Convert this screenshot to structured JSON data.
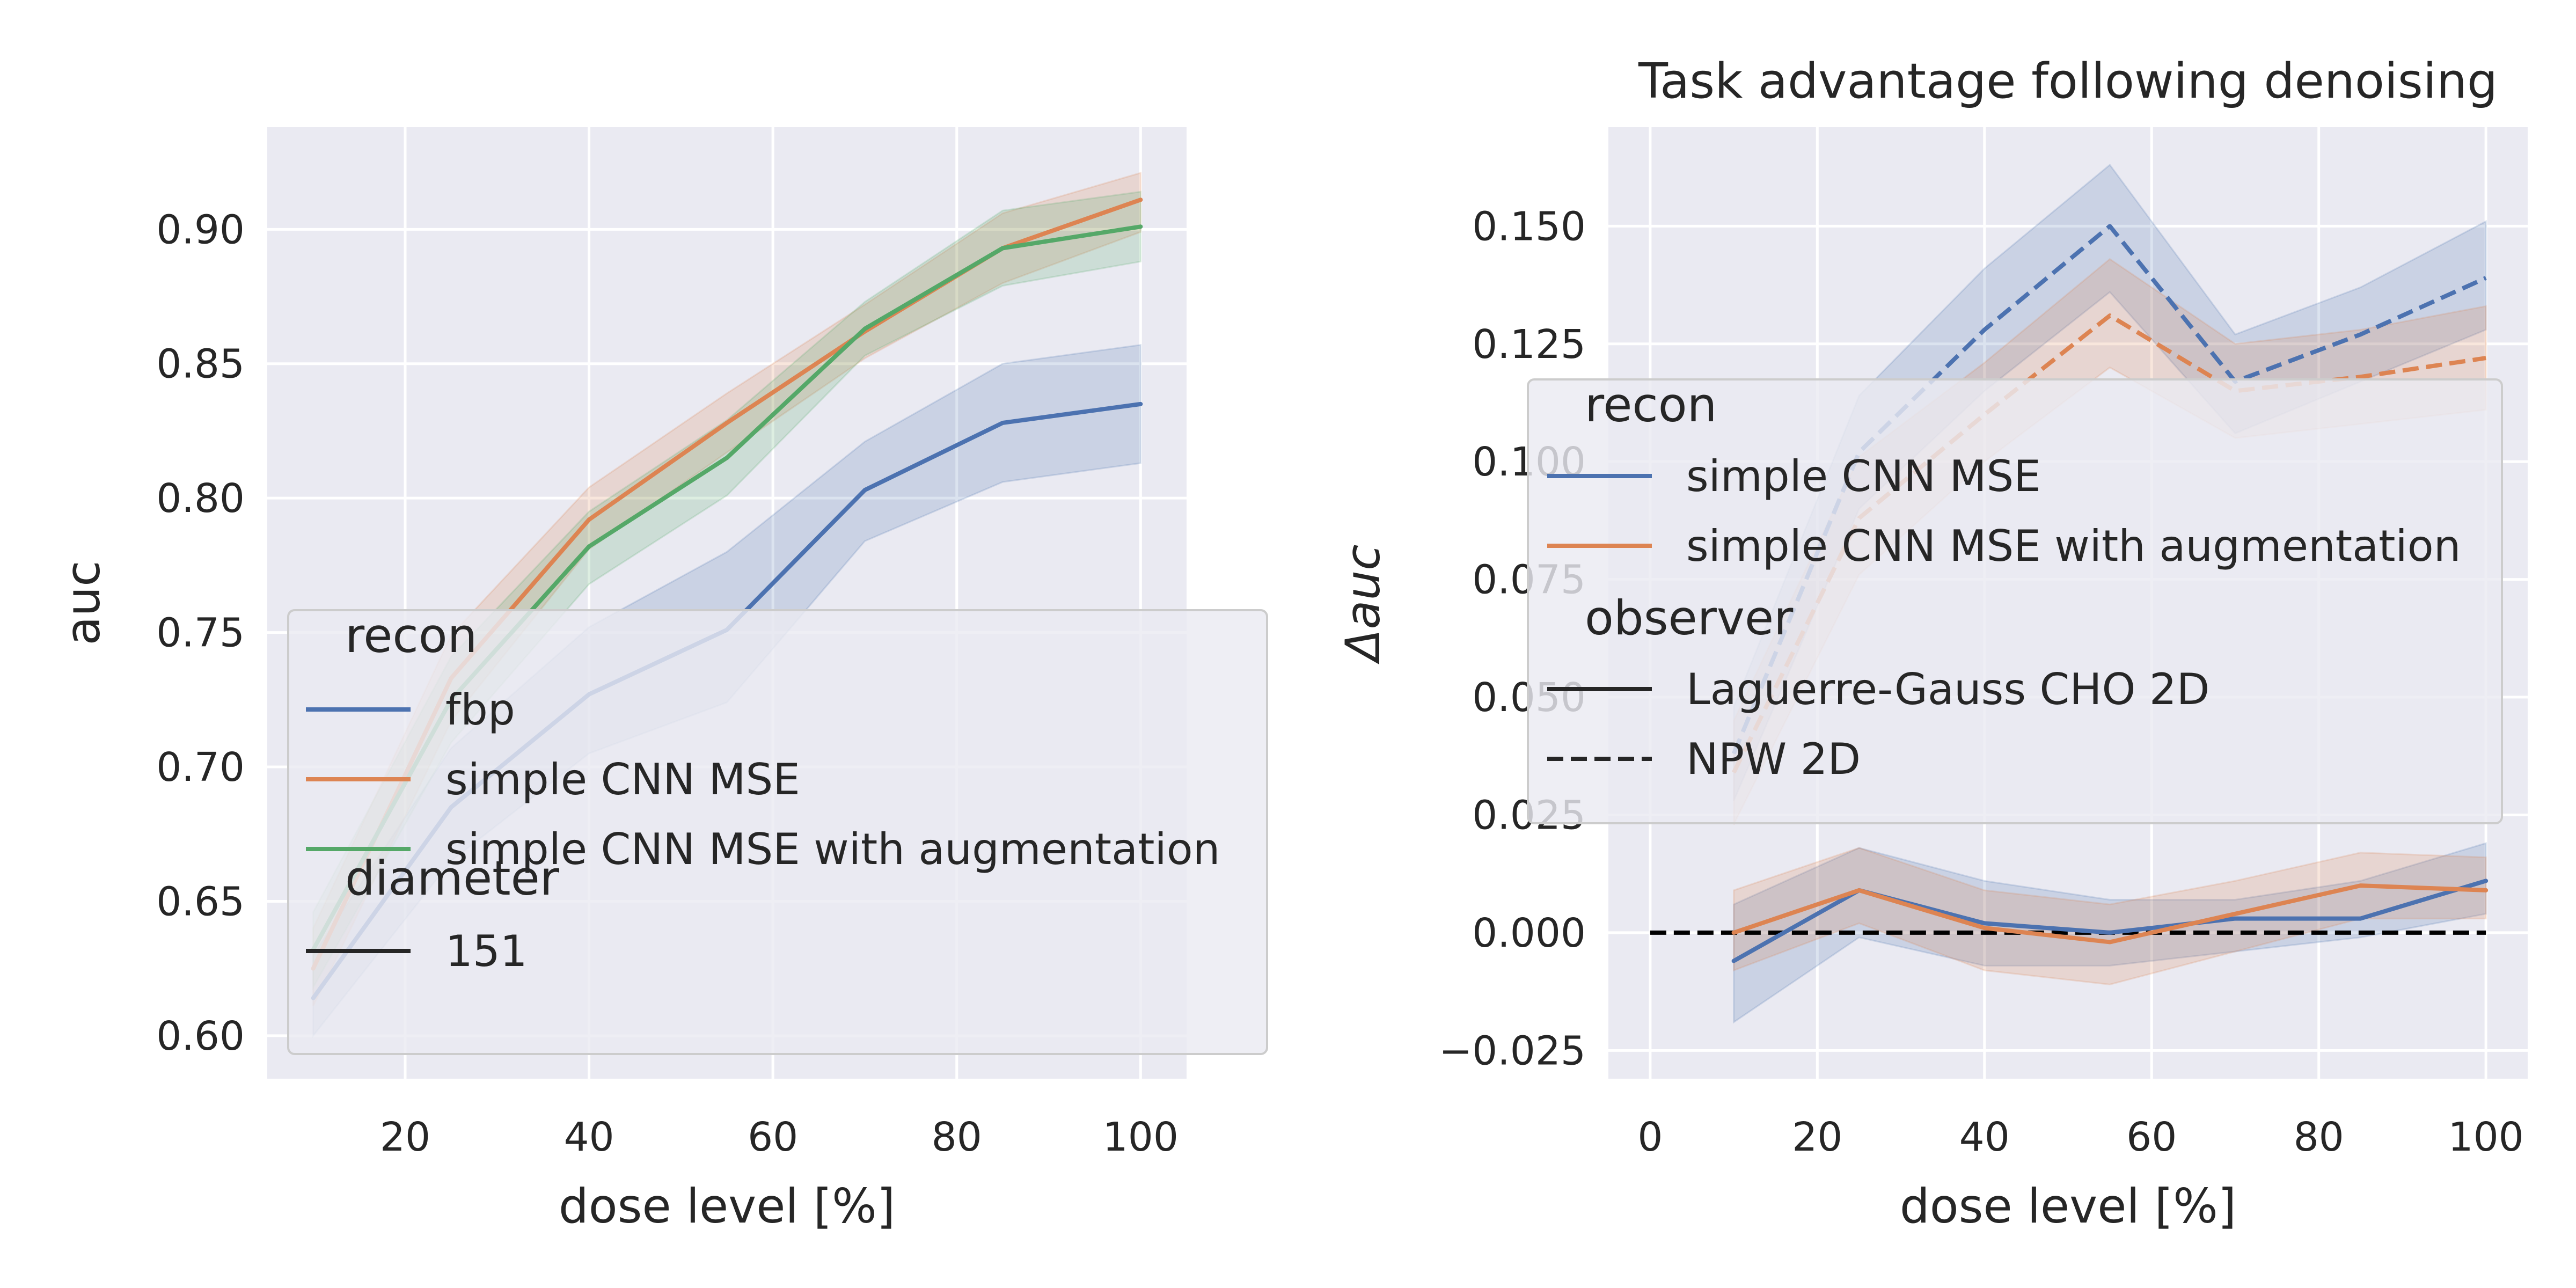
{
  "chart_data": [
    {
      "type": "line",
      "title": "",
      "xlabel": "dose level [%]",
      "ylabel": "auc",
      "xlim": [
        5,
        105
      ],
      "ylim": [
        0.584,
        0.938
      ],
      "xticks": [
        20,
        40,
        60,
        80,
        100
      ],
      "xtick_labels": [
        "20",
        "40",
        "60",
        "80",
        "100"
      ],
      "yticks": [
        0.6,
        0.65,
        0.7,
        0.75,
        0.8,
        0.85,
        0.9
      ],
      "ytick_labels": [
        "0.60",
        "0.65",
        "0.70",
        "0.75",
        "0.80",
        "0.85",
        "0.90"
      ],
      "x": [
        10,
        25,
        40,
        55,
        70,
        85,
        100
      ],
      "grid": true,
      "legend_position": "lower-right",
      "legend": {
        "sections": [
          {
            "title": "recon",
            "entries": [
              {
                "label": "fbp",
                "color": "#4C72B0",
                "dash": "solid"
              },
              {
                "label": "simple CNN MSE",
                "color": "#DD8452",
                "dash": "solid"
              },
              {
                "label": "simple CNN MSE with augmentation",
                "color": "#55A868",
                "dash": "solid"
              }
            ]
          },
          {
            "title": "diameter",
            "entries": [
              {
                "label": "151",
                "color": "#262626",
                "dash": "solid"
              }
            ]
          }
        ]
      },
      "series": [
        {
          "name": "fbp",
          "color": "#4C72B0",
          "dash": "solid",
          "values": [
            0.614,
            0.685,
            0.727,
            0.751,
            0.803,
            0.828,
            0.835
          ],
          "lower": [
            0.6,
            0.665,
            0.705,
            0.724,
            0.784,
            0.806,
            0.813
          ],
          "upper": [
            0.63,
            0.707,
            0.752,
            0.78,
            0.821,
            0.85,
            0.857
          ]
        },
        {
          "name": "simple CNN MSE",
          "color": "#DD8452",
          "dash": "solid",
          "values": [
            0.625,
            0.733,
            0.792,
            0.828,
            0.862,
            0.893,
            0.911
          ],
          "lower": [
            0.611,
            0.717,
            0.781,
            0.817,
            0.852,
            0.88,
            0.899
          ],
          "upper": [
            0.64,
            0.749,
            0.804,
            0.839,
            0.872,
            0.906,
            0.921
          ]
        },
        {
          "name": "simple CNN MSE with augmentation",
          "color": "#55A868",
          "dash": "solid",
          "values": [
            0.632,
            0.725,
            0.782,
            0.815,
            0.863,
            0.893,
            0.901
          ],
          "lower": [
            0.618,
            0.709,
            0.768,
            0.801,
            0.853,
            0.879,
            0.888
          ],
          "upper": [
            0.646,
            0.741,
            0.795,
            0.829,
            0.873,
            0.907,
            0.914
          ]
        }
      ]
    },
    {
      "type": "line",
      "title": "Task advantage following denoising",
      "xlabel": "dose level [%]",
      "ylabel": "Δauc",
      "xlim": [
        -5,
        105
      ],
      "ylim": [
        -0.031,
        0.171
      ],
      "xticks": [
        0,
        20,
        40,
        60,
        80,
        100
      ],
      "xtick_labels": [
        "0",
        "20",
        "40",
        "60",
        "80",
        "100"
      ],
      "yticks": [
        -0.025,
        0.0,
        0.025,
        0.05,
        0.075,
        0.1,
        0.125,
        0.15
      ],
      "ytick_labels": [
        "−0.025",
        "0.000",
        "0.025",
        "0.050",
        "0.075",
        "0.100",
        "0.125",
        "0.150"
      ],
      "x": [
        10,
        25,
        40,
        55,
        70,
        85,
        100
      ],
      "grid": true,
      "legend_position": "center",
      "legend": {
        "sections": [
          {
            "title": "recon",
            "entries": [
              {
                "label": "simple CNN MSE",
                "color": "#4C72B0",
                "dash": "solid"
              },
              {
                "label": "simple CNN MSE with augmentation",
                "color": "#DD8452",
                "dash": "solid"
              }
            ]
          },
          {
            "title": "observer",
            "entries": [
              {
                "label": "Laguerre-Gauss CHO 2D",
                "color": "#262626",
                "dash": "solid"
              },
              {
                "label": "NPW 2D",
                "color": "#262626",
                "dash": "dashed"
              }
            ]
          }
        ]
      },
      "reference_line": {
        "x": [
          0,
          100
        ],
        "y": [
          0,
          0
        ],
        "color": "#000000",
        "dash": "dashed"
      },
      "series": [
        {
          "name": "simple CNN MSE",
          "color": "#4C72B0",
          "dash": "dashed",
          "values": [
            0.038,
            0.102,
            0.128,
            0.15,
            0.117,
            0.127,
            0.139
          ],
          "lower": [
            0.028,
            0.09,
            0.115,
            0.136,
            0.106,
            0.117,
            0.128
          ],
          "upper": [
            0.048,
            0.114,
            0.141,
            0.163,
            0.127,
            0.137,
            0.151
          ]
        },
        {
          "name": "simple CNN MSE with augmentation",
          "color": "#DD8452",
          "dash": "dashed",
          "values": [
            0.034,
            0.088,
            0.11,
            0.131,
            0.115,
            0.118,
            0.122
          ],
          "lower": [
            0.023,
            0.076,
            0.1,
            0.12,
            0.105,
            0.108,
            0.111
          ],
          "upper": [
            0.045,
            0.101,
            0.121,
            0.143,
            0.125,
            0.128,
            0.133
          ]
        },
        {
          "name": "simple CNN MSE",
          "color": "#4C72B0",
          "dash": "solid",
          "values": [
            -0.006,
            0.009,
            0.002,
            0.0,
            0.003,
            0.003,
            0.011
          ],
          "lower": [
            -0.019,
            -0.001,
            -0.007,
            -0.007,
            -0.004,
            -0.001,
            0.004
          ],
          "upper": [
            0.006,
            0.018,
            0.011,
            0.007,
            0.007,
            0.011,
            0.019
          ]
        },
        {
          "name": "simple CNN MSE with augmentation",
          "color": "#DD8452",
          "dash": "solid",
          "values": [
            0.0,
            0.009,
            0.001,
            -0.002,
            0.004,
            0.01,
            0.009
          ],
          "lower": [
            -0.008,
            0.002,
            -0.008,
            -0.011,
            -0.004,
            0.003,
            0.003
          ],
          "upper": [
            0.009,
            0.018,
            0.009,
            0.006,
            0.011,
            0.017,
            0.016
          ]
        }
      ]
    }
  ]
}
